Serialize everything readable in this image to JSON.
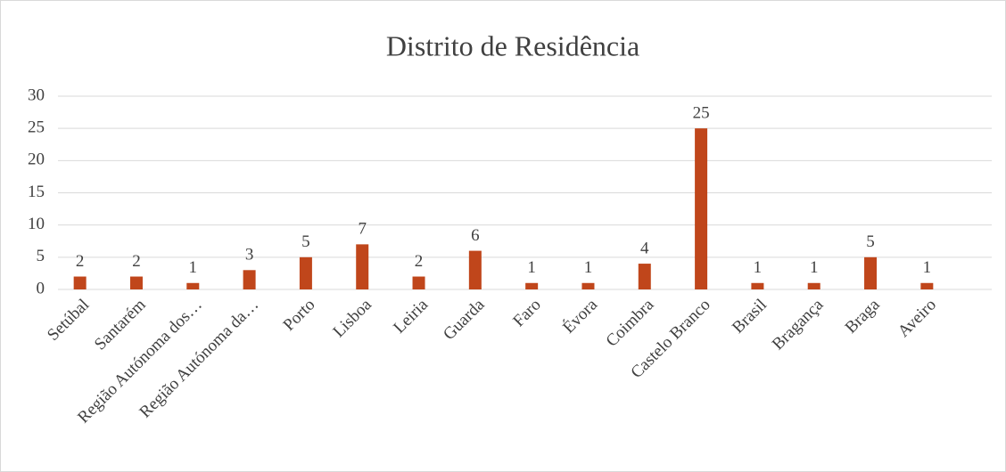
{
  "chart_data": {
    "type": "bar",
    "title": "Distrito de Residência",
    "categories": [
      "Setúbal",
      "Santarém",
      "Região Autónoma dos…",
      "Região Autónoma da…",
      "Porto",
      "Lisboa",
      "Leiria",
      "Guarda",
      "Faro",
      "Évora",
      "Coimbra",
      "Castelo Branco",
      "Brasil",
      "Bragança",
      "Braga",
      "Aveiro"
    ],
    "values": [
      2,
      2,
      1,
      3,
      5,
      7,
      2,
      6,
      1,
      1,
      4,
      25,
      1,
      1,
      5,
      1
    ],
    "color": "#c0461b",
    "ylim": [
      0,
      30
    ],
    "yticks": [
      0,
      5,
      10,
      15,
      20,
      25,
      30
    ],
    "grid": true
  }
}
